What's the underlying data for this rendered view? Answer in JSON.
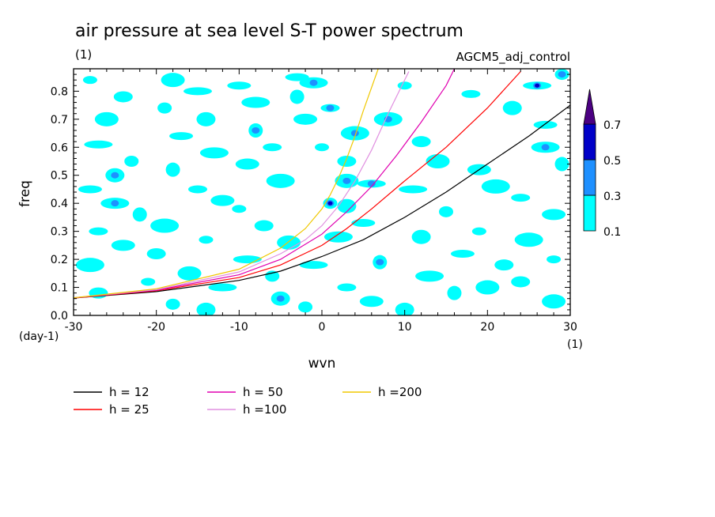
{
  "chart_data": {
    "type": "heatmap",
    "title": "air pressure at sea level S-T power spectrum",
    "units_label": "(1)",
    "model_label": "AGCM5_adj_control",
    "xlabel": "wvn",
    "ylabel": "freq",
    "x_unit": "(1)",
    "y_unit": "(day-1)",
    "xlim": [
      -30,
      30
    ],
    "ylim": [
      0,
      0.88
    ],
    "x_ticks": [
      -30,
      -20,
      -10,
      0,
      10,
      20,
      30
    ],
    "x_tick_labels": [
      "-30",
      "-20",
      "-10",
      "0",
      "10",
      "20",
      "30"
    ],
    "y_ticks": [
      0,
      0.1,
      0.2,
      0.3,
      0.4,
      0.5,
      0.6,
      0.7,
      0.8
    ],
    "y_tick_labels": [
      "0.0",
      "0.1",
      "0.2",
      "0.3",
      "0.4",
      "0.5",
      "0.6",
      "0.7",
      "0.8"
    ],
    "contour_levels": [
      0.1,
      0.3,
      0.5,
      0.7
    ],
    "colorbar_labels": [
      "0.1",
      "0.3",
      "0.5",
      "0.7"
    ],
    "colorbar_colors": [
      "#00ffff",
      "#1e90ff",
      "#0000c8",
      "#4b0082"
    ],
    "patches": [
      {
        "x": -28,
        "y": 0.84,
        "level": 0.1
      },
      {
        "x": -24,
        "y": 0.78,
        "level": 0.1
      },
      {
        "x": -26,
        "y": 0.7,
        "level": 0.1
      },
      {
        "x": -27,
        "y": 0.61,
        "level": 0.1
      },
      {
        "x": -23,
        "y": 0.55,
        "level": 0.1
      },
      {
        "x": -25,
        "y": 0.5,
        "level": 0.3
      },
      {
        "x": -28,
        "y": 0.45,
        "level": 0.1
      },
      {
        "x": -25,
        "y": 0.4,
        "level": 0.3
      },
      {
        "x": -22,
        "y": 0.36,
        "level": 0.1
      },
      {
        "x": -27,
        "y": 0.3,
        "level": 0.1
      },
      {
        "x": -24,
        "y": 0.25,
        "level": 0.1
      },
      {
        "x": -28,
        "y": 0.18,
        "level": 0.1
      },
      {
        "x": -21,
        "y": 0.12,
        "level": 0.1
      },
      {
        "x": -27,
        "y": 0.08,
        "level": 0.1
      },
      {
        "x": -18,
        "y": 0.84,
        "level": 0.1
      },
      {
        "x": -15,
        "y": 0.8,
        "level": 0.1
      },
      {
        "x": -19,
        "y": 0.74,
        "level": 0.1
      },
      {
        "x": -14,
        "y": 0.7,
        "level": 0.1
      },
      {
        "x": -17,
        "y": 0.64,
        "level": 0.1
      },
      {
        "x": -13,
        "y": 0.58,
        "level": 0.1
      },
      {
        "x": -18,
        "y": 0.52,
        "level": 0.1
      },
      {
        "x": -15,
        "y": 0.45,
        "level": 0.1
      },
      {
        "x": -12,
        "y": 0.41,
        "level": 0.1
      },
      {
        "x": -19,
        "y": 0.32,
        "level": 0.1
      },
      {
        "x": -14,
        "y": 0.27,
        "level": 0.1
      },
      {
        "x": -20,
        "y": 0.22,
        "level": 0.1
      },
      {
        "x": -16,
        "y": 0.15,
        "level": 0.1
      },
      {
        "x": -12,
        "y": 0.1,
        "level": 0.1
      },
      {
        "x": -18,
        "y": 0.04,
        "level": 0.1
      },
      {
        "x": -14,
        "y": 0.02,
        "level": 0.1
      },
      {
        "x": -10,
        "y": 0.82,
        "level": 0.1
      },
      {
        "x": -8,
        "y": 0.76,
        "level": 0.1
      },
      {
        "x": -8,
        "y": 0.66,
        "level": 0.3
      },
      {
        "x": -6,
        "y": 0.6,
        "level": 0.1
      },
      {
        "x": -9,
        "y": 0.54,
        "level": 0.1
      },
      {
        "x": -5,
        "y": 0.48,
        "level": 0.1
      },
      {
        "x": -10,
        "y": 0.38,
        "level": 0.1
      },
      {
        "x": -7,
        "y": 0.32,
        "level": 0.1
      },
      {
        "x": -4,
        "y": 0.26,
        "level": 0.1
      },
      {
        "x": -9,
        "y": 0.2,
        "level": 0.1
      },
      {
        "x": -6,
        "y": 0.14,
        "level": 0.1
      },
      {
        "x": -5,
        "y": 0.06,
        "level": 0.3
      },
      {
        "x": -3,
        "y": 0.85,
        "level": 0.1
      },
      {
        "x": -1,
        "y": 0.83,
        "level": 0.3
      },
      {
        "x": -3,
        "y": 0.78,
        "level": 0.1
      },
      {
        "x": 1,
        "y": 0.74,
        "level": 0.3
      },
      {
        "x": -2,
        "y": 0.7,
        "level": 0.1
      },
      {
        "x": 4,
        "y": 0.65,
        "level": 0.3
      },
      {
        "x": 0,
        "y": 0.6,
        "level": 0.1
      },
      {
        "x": 3,
        "y": 0.55,
        "level": 0.1
      },
      {
        "x": 3,
        "y": 0.48,
        "level": 0.3
      },
      {
        "x": 6,
        "y": 0.47,
        "level": 0.3
      },
      {
        "x": 1,
        "y": 0.4,
        "level": 0.5
      },
      {
        "x": 3,
        "y": 0.39,
        "level": 0.1
      },
      {
        "x": 5,
        "y": 0.33,
        "level": 0.1
      },
      {
        "x": 2,
        "y": 0.28,
        "level": 0.1
      },
      {
        "x": 7,
        "y": 0.19,
        "level": 0.3
      },
      {
        "x": 3,
        "y": 0.1,
        "level": 0.1
      },
      {
        "x": 6,
        "y": 0.05,
        "level": 0.1
      },
      {
        "x": 8,
        "y": 0.7,
        "level": 0.3
      },
      {
        "x": 10,
        "y": 0.82,
        "level": 0.1
      },
      {
        "x": 12,
        "y": 0.62,
        "level": 0.1
      },
      {
        "x": 14,
        "y": 0.55,
        "level": 0.1
      },
      {
        "x": 11,
        "y": 0.45,
        "level": 0.1
      },
      {
        "x": 15,
        "y": 0.37,
        "level": 0.1
      },
      {
        "x": 12,
        "y": 0.28,
        "level": 0.1
      },
      {
        "x": 17,
        "y": 0.22,
        "level": 0.1
      },
      {
        "x": 13,
        "y": 0.14,
        "level": 0.1
      },
      {
        "x": 16,
        "y": 0.08,
        "level": 0.1
      },
      {
        "x": 18,
        "y": 0.79,
        "level": 0.1
      },
      {
        "x": 19,
        "y": 0.52,
        "level": 0.1
      },
      {
        "x": 21,
        "y": 0.46,
        "level": 0.1
      },
      {
        "x": 19,
        "y": 0.3,
        "level": 0.1
      },
      {
        "x": 22,
        "y": 0.18,
        "level": 0.1
      },
      {
        "x": 20,
        "y": 0.1,
        "level": 0.1
      },
      {
        "x": 26,
        "y": 0.82,
        "level": 0.5
      },
      {
        "x": 29,
        "y": 0.86,
        "level": 0.3
      },
      {
        "x": 23,
        "y": 0.74,
        "level": 0.1
      },
      {
        "x": 27,
        "y": 0.68,
        "level": 0.1
      },
      {
        "x": 27,
        "y": 0.6,
        "level": 0.3
      },
      {
        "x": 29,
        "y": 0.54,
        "level": 0.1
      },
      {
        "x": 24,
        "y": 0.42,
        "level": 0.1
      },
      {
        "x": 28,
        "y": 0.36,
        "level": 0.1
      },
      {
        "x": 25,
        "y": 0.27,
        "level": 0.1
      },
      {
        "x": 28,
        "y": 0.2,
        "level": 0.1
      },
      {
        "x": 24,
        "y": 0.12,
        "level": 0.1
      },
      {
        "x": 28,
        "y": 0.05,
        "level": 0.1
      },
      {
        "x": -1,
        "y": 0.18,
        "level": 0.1
      },
      {
        "x": -2,
        "y": 0.03,
        "level": 0.1
      },
      {
        "x": 10,
        "y": 0.02,
        "level": 0.1
      }
    ],
    "series": [
      {
        "name": "h = 12",
        "color": "#000000",
        "x": [
          -30,
          -20,
          -10,
          -5,
          0,
          5,
          10,
          15,
          20,
          25,
          30
        ],
        "y": [
          0.062,
          0.085,
          0.125,
          0.158,
          0.21,
          0.27,
          0.35,
          0.44,
          0.54,
          0.64,
          0.75
        ]
      },
      {
        "name": "h = 25",
        "color": "#ff0000",
        "x": [
          -30,
          -20,
          -10,
          -5,
          0,
          3,
          6,
          10,
          15,
          20,
          24
        ],
        "y": [
          0.062,
          0.088,
          0.135,
          0.18,
          0.25,
          0.31,
          0.38,
          0.48,
          0.6,
          0.74,
          0.87
        ]
      },
      {
        "name": "h = 50",
        "color": "#e000b0",
        "x": [
          -30,
          -20,
          -10,
          -5,
          0,
          3,
          6,
          9,
          12,
          15,
          16
        ],
        "y": [
          0.063,
          0.09,
          0.145,
          0.2,
          0.29,
          0.37,
          0.46,
          0.57,
          0.69,
          0.82,
          0.88
        ]
      },
      {
        "name": "h =100",
        "color": "#e090e0",
        "x": [
          -30,
          -20,
          -10,
          -5,
          -2,
          0,
          2,
          4,
          6,
          8,
          10.5
        ],
        "y": [
          0.063,
          0.092,
          0.155,
          0.22,
          0.27,
          0.32,
          0.39,
          0.48,
          0.59,
          0.72,
          0.87
        ]
      },
      {
        "name": "h =200",
        "color": "#f0c800",
        "x": [
          -30,
          -20,
          -10,
          -5,
          -2,
          0,
          1,
          2,
          3,
          4,
          5,
          6.8
        ],
        "y": [
          0.063,
          0.095,
          0.165,
          0.24,
          0.31,
          0.38,
          0.43,
          0.49,
          0.56,
          0.64,
          0.73,
          0.88
        ]
      }
    ],
    "grid": false,
    "legend_placement": "bottom-left"
  }
}
